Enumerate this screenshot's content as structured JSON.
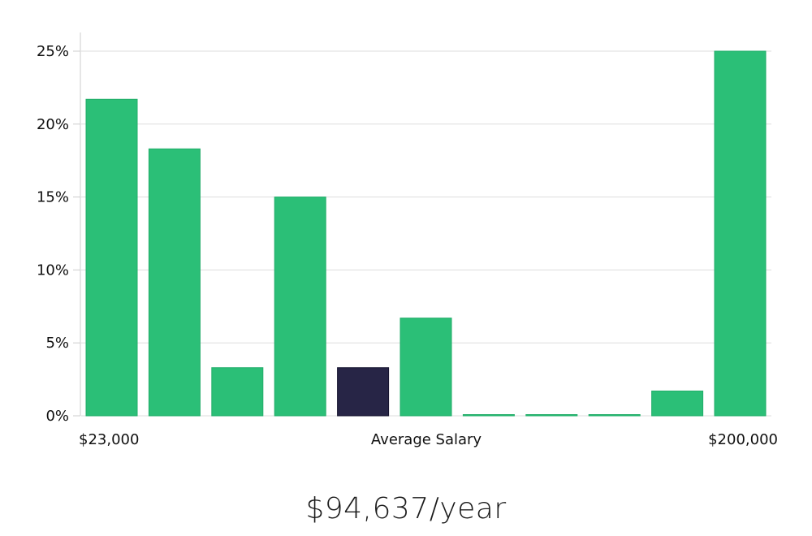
{
  "chart_data": {
    "type": "bar",
    "title": "",
    "xlabel": "Average Salary",
    "ylabel": "",
    "ylim": [
      0,
      25
    ],
    "yticks": [
      0,
      5,
      10,
      15,
      20,
      25
    ],
    "ytick_labels": [
      "0%",
      "5%",
      "10%",
      "15%",
      "20%",
      "25%"
    ],
    "x_min_label": "$23,000",
    "x_max_label": "$200,000",
    "values": [
      21.7,
      18.3,
      3.3,
      15.0,
      3.3,
      6.7,
      0,
      0,
      0,
      1.7,
      25.0
    ],
    "highlight_index": 4,
    "grid": true
  },
  "colors": {
    "bar": "#2bbf77",
    "highlight": "#272546",
    "grid": "#dddddd",
    "axis": "#cccccc"
  },
  "footer": {
    "average_salary_text": "$94,637/year"
  }
}
